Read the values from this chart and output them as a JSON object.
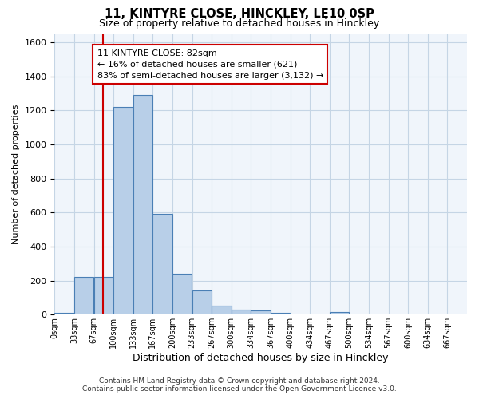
{
  "title": "11, KINTYRE CLOSE, HINCKLEY, LE10 0SP",
  "subtitle": "Size of property relative to detached houses in Hinckley",
  "xlabel": "Distribution of detached houses by size in Hinckley",
  "ylabel": "Number of detached properties",
  "footer_line1": "Contains HM Land Registry data © Crown copyright and database right 2024.",
  "footer_line2": "Contains public sector information licensed under the Open Government Licence v3.0.",
  "bin_labels": [
    "0sqm",
    "33sqm",
    "67sqm",
    "100sqm",
    "133sqm",
    "167sqm",
    "200sqm",
    "233sqm",
    "267sqm",
    "300sqm",
    "334sqm",
    "367sqm",
    "400sqm",
    "434sqm",
    "467sqm",
    "500sqm",
    "534sqm",
    "567sqm",
    "600sqm",
    "634sqm",
    "667sqm"
  ],
  "bar_values": [
    10,
    220,
    220,
    1220,
    1290,
    590,
    240,
    140,
    55,
    30,
    25,
    10,
    0,
    0,
    15,
    0,
    0,
    0,
    0,
    0,
    0
  ],
  "bar_color": "#b8cfe8",
  "bar_edge_color": "#4a7fb5",
  "grid_color": "#c5d5e5",
  "annotation_line1": "11 KINTYRE CLOSE: 82sqm",
  "annotation_line2": "← 16% of detached houses are smaller (621)",
  "annotation_line3": "83% of semi-detached houses are larger (3,132) →",
  "vline_color": "#cc0000",
  "annotation_box_color": "#ffffff",
  "annotation_box_edge": "#cc0000",
  "ylim": [
    0,
    1650
  ],
  "yticks": [
    0,
    200,
    400,
    600,
    800,
    1000,
    1200,
    1400,
    1600
  ],
  "bin_width": 33.33,
  "num_bins": 21,
  "property_sqm": 82
}
